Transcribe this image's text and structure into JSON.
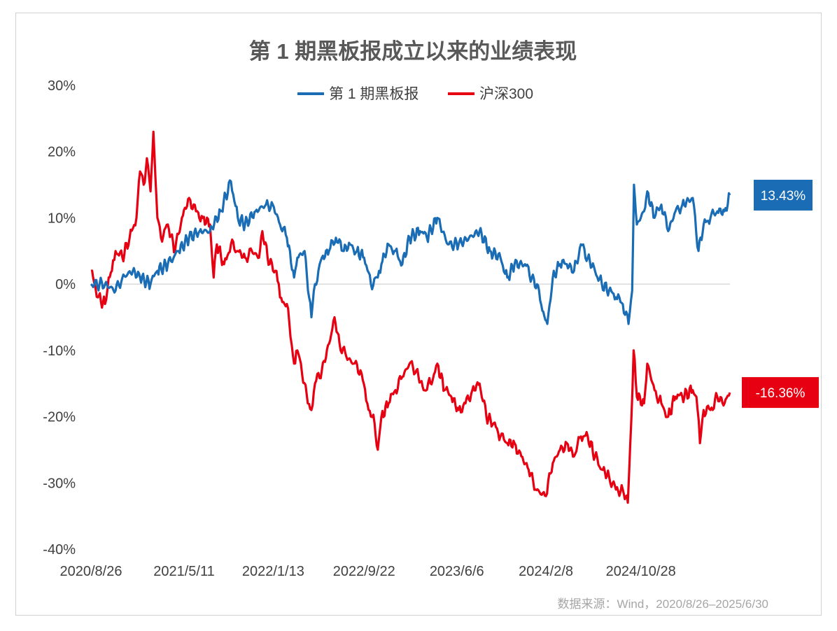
{
  "chart_data": {
    "type": "line",
    "title": "第 1 期黑板报成立以来的业绩表现",
    "xlabel": "",
    "ylabel": "",
    "x_unit": "days since 2020/8/26",
    "xlim": [
      0,
      1771
    ],
    "ylim": [
      -40,
      30
    ],
    "y_ticks": [
      30,
      20,
      10,
      0,
      -10,
      -20,
      -30,
      -40
    ],
    "y_tick_labels": [
      "30%",
      "20%",
      "10%",
      "0%",
      "-10%",
      "-20%",
      "-30%",
      "-40%"
    ],
    "x_ticks": [
      0,
      258,
      505,
      757,
      1014,
      1261,
      1524
    ],
    "x_tick_labels": [
      "2020/8/26",
      "2021/5/11",
      "2022/1/13",
      "2022/9/22",
      "2023/6/6",
      "2024/2/8",
      "2024/10/28"
    ],
    "legend_position": "top-center",
    "grid": false,
    "series": [
      {
        "name": "第 1 期黑板报",
        "color": "#1a6db4",
        "end_label": "13.43%",
        "x": [
          0,
          39,
          68,
          87,
          116,
          136,
          165,
          184,
          213,
          243,
          272,
          301,
          330,
          359,
          388,
          407,
          427,
          456,
          485,
          504,
          524,
          543,
          563,
          572,
          592,
          611,
          621,
          640,
          660,
          679,
          698,
          718,
          737,
          757,
          776,
          795,
          805,
          825,
          844,
          863,
          883,
          912,
          931,
          960,
          989,
          1019,
          1048,
          1077,
          1106,
          1135,
          1154,
          1174,
          1203,
          1222,
          1242,
          1251,
          1265,
          1280,
          1300,
          1319,
          1339,
          1358,
          1377,
          1397,
          1416,
          1436,
          1455,
          1474,
          1490,
          1500,
          1505,
          1513,
          1533,
          1542,
          1562,
          1581,
          1600,
          1620,
          1639,
          1668,
          1684,
          1698,
          1717,
          1736,
          1756,
          1771
        ],
        "y": [
          0,
          0,
          -1,
          1,
          2,
          1,
          0,
          2,
          3,
          5,
          7,
          8,
          8,
          11,
          15.5,
          10,
          9,
          11,
          12,
          12,
          9,
          7,
          1,
          4,
          5,
          -5,
          0,
          4,
          5,
          7,
          5,
          6,
          5,
          4,
          0,
          1,
          3,
          6,
          5,
          3,
          7,
          8,
          7,
          10,
          6,
          6,
          7,
          8,
          5,
          4,
          1,
          3,
          3,
          1,
          -1,
          -4,
          -6,
          1,
          3,
          3,
          2,
          6,
          4,
          2,
          0,
          -1,
          -2,
          -3,
          -6,
          -1,
          15,
          9,
          11,
          14,
          10,
          12,
          8,
          11,
          12,
          13,
          5,
          9,
          10,
          11,
          11,
          13.43
        ]
      },
      {
        "name": "沪深300",
        "color": "#e60012",
        "end_label": "-16.36%",
        "x": [
          0,
          19,
          39,
          49,
          58,
          68,
          87,
          107,
          126,
          136,
          146,
          155,
          165,
          173,
          184,
          194,
          213,
          233,
          252,
          272,
          291,
          310,
          330,
          340,
          349,
          369,
          388,
          407,
          427,
          446,
          466,
          475,
          495,
          514,
          524,
          543,
          553,
          563,
          572,
          582,
          601,
          611,
          621,
          640,
          660,
          675,
          689,
          708,
          728,
          747,
          766,
          776,
          786,
          795,
          805,
          825,
          844,
          863,
          883,
          902,
          922,
          941,
          960,
          980,
          999,
          1019,
          1038,
          1057,
          1077,
          1096,
          1116,
          1135,
          1154,
          1174,
          1193,
          1213,
          1232,
          1261,
          1280,
          1300,
          1319,
          1339,
          1358,
          1377,
          1397,
          1416,
          1436,
          1455,
          1474,
          1488,
          1498,
          1504,
          1513,
          1533,
          1542,
          1562,
          1581,
          1600,
          1620,
          1639,
          1668,
          1678,
          1688,
          1698,
          1717,
          1736,
          1756,
          1771
        ],
        "y": [
          2,
          -2,
          -3,
          1,
          2,
          5,
          4,
          7,
          10,
          17,
          15,
          19,
          14,
          23,
          10,
          7,
          9,
          5,
          10,
          13,
          11,
          10,
          9,
          1,
          6,
          3,
          6,
          5,
          4,
          5,
          4,
          8,
          3,
          2,
          -2,
          -3,
          -8,
          -12,
          -10,
          -12,
          -18,
          -19,
          -15,
          -13,
          -9,
          -5,
          -9,
          -11,
          -12,
          -13,
          -18,
          -20,
          -21,
          -25,
          -20,
          -18,
          -16,
          -14,
          -12,
          -13,
          -16,
          -15,
          -12,
          -16,
          -17,
          -19,
          -18,
          -16,
          -15,
          -20,
          -21,
          -23,
          -24,
          -24,
          -26,
          -28,
          -31,
          -32,
          -27,
          -25,
          -24,
          -26,
          -23,
          -23,
          -26,
          -28,
          -29,
          -31,
          -31,
          -33,
          -20,
          -10,
          -17,
          -18,
          -12,
          -16,
          -18,
          -20,
          -17,
          -17,
          -16,
          -17,
          -24,
          -19,
          -19,
          -17,
          -18,
          -16.36
        ]
      }
    ],
    "source_note": "数据来源：Wind，2020/8/26–2025/6/30"
  }
}
